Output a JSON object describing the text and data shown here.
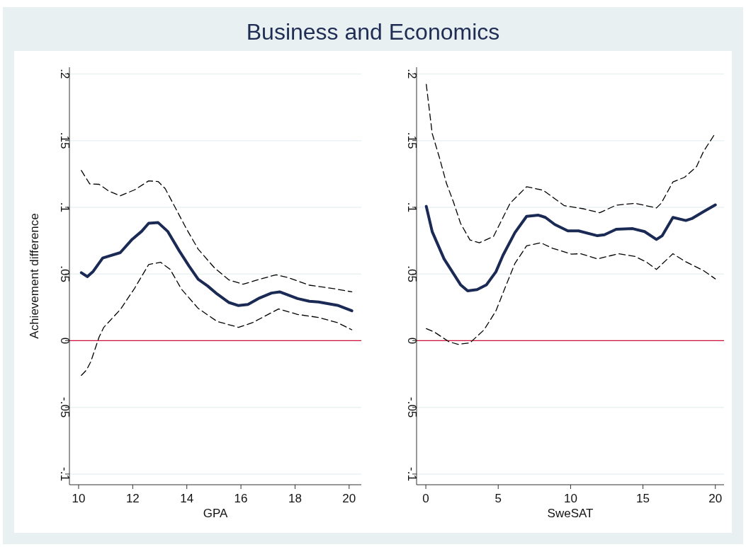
{
  "chart_data": [
    {
      "type": "line",
      "title": "Business and Economics",
      "xlabel": "GPA",
      "ylabel": "Achievement difference",
      "xlim": [
        9.66,
        20.45
      ],
      "xticks": [
        10,
        12,
        14,
        16,
        18,
        20
      ],
      "ylim": [
        -0.108,
        0.205
      ],
      "yticks": [
        {
          "value": -0.1,
          "label": "-.1"
        },
        {
          "value": -0.05,
          "label": "-.05"
        },
        {
          "value": 0,
          "label": "0"
        },
        {
          "value": 0.05,
          "label": ".05"
        },
        {
          "value": 0.1,
          "label": ".1"
        },
        {
          "value": 0.15,
          "label": ".15"
        },
        {
          "value": 0.2,
          "label": ".2"
        }
      ],
      "grid": "y",
      "ref_lines": [
        {
          "axis": "y",
          "value": 0,
          "color": "#d0103a"
        }
      ],
      "series": [
        {
          "color": "#1a2a55",
          "line_style": "solid",
          "x": [
            10.1,
            10.32,
            10.54,
            10.89,
            11.54,
            11.98,
            12.33,
            12.59,
            12.94,
            13.29,
            13.73,
            14.08,
            14.42,
            14.77,
            15.12,
            15.56,
            15.91,
            16.26,
            16.69,
            17.13,
            17.43,
            18.09,
            18.53,
            18.87,
            19.57,
            20.1
          ],
          "values": [
            0.051,
            0.048,
            0.052,
            0.062,
            0.066,
            0.076,
            0.082,
            0.088,
            0.0885,
            0.082,
            0.067,
            0.056,
            0.046,
            0.041,
            0.035,
            0.0286,
            0.0263,
            0.0272,
            0.032,
            0.0357,
            0.0366,
            0.0316,
            0.0295,
            0.029,
            0.0265,
            0.0224
          ]
        },
        {
          "color": "#000000",
          "line_style": "dashed",
          "x": [
            10.1,
            10.41,
            10.76,
            11.11,
            11.54,
            12.07,
            12.59,
            12.94,
            13.2,
            13.55,
            13.99,
            14.42,
            15.03,
            15.56,
            16.08,
            16.6,
            17.3,
            17.74,
            18.53,
            19.49,
            20.1
          ],
          "values": [
            0.1276,
            0.1175,
            0.1172,
            0.1122,
            0.1086,
            0.1131,
            0.1198,
            0.1193,
            0.114,
            0.1006,
            0.0837,
            0.0686,
            0.0544,
            0.0455,
            0.0423,
            0.0455,
            0.0494,
            0.0473,
            0.0416,
            0.0388,
            0.0366
          ]
        },
        {
          "color": "#000000",
          "line_style": "dashed",
          "x": [
            10.1,
            10.29,
            10.45,
            10.76,
            10.93,
            11.54,
            12.07,
            12.59,
            13.03,
            13.38,
            13.81,
            14.42,
            15.12,
            15.91,
            16.43,
            17.39,
            18.09,
            18.87,
            19.57,
            20.1
          ],
          "values": [
            -0.026,
            -0.022,
            -0.0158,
            0.0029,
            0.01,
            0.0233,
            0.0393,
            0.0571,
            0.0588,
            0.0535,
            0.0384,
            0.0242,
            0.0144,
            0.01,
            0.0135,
            0.0238,
            0.0197,
            0.0174,
            0.0135,
            0.0082
          ]
        }
      ]
    },
    {
      "type": "line",
      "xlabel": "SweSAT",
      "xlim": [
        -0.64,
        20.6
      ],
      "xticks": [
        0,
        5,
        10,
        15,
        20
      ],
      "ylim": [
        -0.108,
        0.205
      ],
      "yticks": [
        {
          "value": -0.1,
          "label": "-.1"
        },
        {
          "value": -0.05,
          "label": "-.05"
        },
        {
          "value": 0,
          "label": "0"
        },
        {
          "value": 0.05,
          "label": ".05"
        },
        {
          "value": 0.1,
          "label": ".1"
        },
        {
          "value": 0.15,
          "label": ".15"
        },
        {
          "value": 0.2,
          "label": ".2"
        }
      ],
      "grid": "y",
      "ref_lines": [
        {
          "axis": "y",
          "value": 0,
          "color": "#d0103a"
        }
      ],
      "series": [
        {
          "color": "#1a2a55",
          "line_style": "solid",
          "x": [
            0.03,
            0.44,
            1.26,
            2.4,
            2.89,
            3.54,
            4.19,
            4.84,
            5.33,
            6.15,
            6.96,
            7.78,
            8.26,
            8.91,
            9.81,
            10.55,
            11.85,
            12.34,
            13.15,
            14.29,
            15.11,
            15.93,
            16.33,
            17.07,
            17.96,
            18.37,
            19.19,
            20.0
          ],
          "values": [
            0.1007,
            0.0817,
            0.0613,
            0.0419,
            0.0374,
            0.0383,
            0.0419,
            0.0516,
            0.064,
            0.0809,
            0.0932,
            0.0941,
            0.0924,
            0.0871,
            0.0823,
            0.0823,
            0.0787,
            0.0794,
            0.0835,
            0.084,
            0.0818,
            0.0759,
            0.0787,
            0.0924,
            0.0901,
            0.0915,
            0.0968,
            0.1018
          ]
        },
        {
          "color": "#000000",
          "line_style": "dashed",
          "x": [
            0.03,
            0.44,
            0.93,
            1.42,
            1.91,
            2.4,
            3.05,
            3.7,
            4.68,
            5.82,
            6.96,
            8.1,
            9.57,
            10.87,
            12.01,
            13.15,
            14.46,
            15.93,
            16.26,
            17.07,
            17.88,
            18.7,
            19.19,
            19.93
          ],
          "values": [
            0.1922,
            0.1553,
            0.1376,
            0.1181,
            0.1039,
            0.0879,
            0.0755,
            0.0734,
            0.0782,
            0.103,
            0.1154,
            0.1128,
            0.1012,
            0.0989,
            0.0959,
            0.1016,
            0.103,
            0.0995,
            0.103,
            0.119,
            0.1225,
            0.1305,
            0.142,
            0.1544
          ]
        },
        {
          "color": "#000000",
          "line_style": "dashed",
          "x": [
            0.03,
            0.6,
            1.58,
            2.23,
            3.05,
            4.02,
            4.84,
            5.49,
            6.15,
            6.96,
            7.94,
            8.75,
            10.06,
            10.71,
            11.85,
            13.32,
            14.46,
            15.27,
            15.93,
            17.07,
            17.88,
            19.19,
            20.0
          ],
          "values": [
            0.009,
            0.0064,
            -0.0007,
            -0.0028,
            -0.0016,
            0.0081,
            0.0223,
            0.0401,
            0.0578,
            0.0711,
            0.0734,
            0.0693,
            0.0649,
            0.0652,
            0.0613,
            0.0652,
            0.0631,
            0.0587,
            0.0534,
            0.0652,
            0.0596,
            0.0525,
            0.0463
          ]
        }
      ]
    }
  ]
}
